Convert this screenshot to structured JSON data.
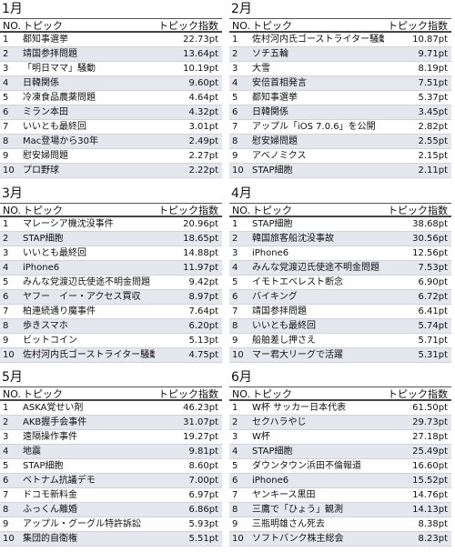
{
  "panels": [
    {
      "title": "1月",
      "header": [
        "NO.",
        "トピック",
        "トピック指数"
      ],
      "rows": [
        [
          "1",
          "都知事選挙",
          "22.73pt"
        ],
        [
          "2",
          "靖国参拝問題",
          "13.64pt"
        ],
        [
          "3",
          "「明日ママ」騒動",
          "10.19pt"
        ],
        [
          "4",
          "日韓関係",
          "9.60pt"
        ],
        [
          "5",
          "冷凍食品農薬問題",
          "4.64pt"
        ],
        [
          "6",
          "ミラン本田",
          "4.32pt"
        ],
        [
          "7",
          "いいとも最終回",
          "3.01pt"
        ],
        [
          "8",
          "Mac登場から30年",
          "2.49pt"
        ],
        [
          "9",
          "慰安婦問題",
          "2.27pt"
        ],
        [
          "10",
          "プロ野球",
          "2.22pt"
        ]
      ]
    },
    {
      "title": "2月",
      "header": [
        "NO.",
        "トピック",
        "トピック指数"
      ],
      "rows": [
        [
          "1",
          "佐村河内氏ゴーストライター騒動",
          "10.87pt"
        ],
        [
          "2",
          "ソチ五輪",
          "9.71pt"
        ],
        [
          "3",
          "大雪",
          "8.19pt"
        ],
        [
          "4",
          "安倍首相発言",
          "7.51pt"
        ],
        [
          "5",
          "都知事選挙",
          "5.37pt"
        ],
        [
          "6",
          "日韓関係",
          "3.45pt"
        ],
        [
          "7",
          "アップル「iOS 7.0.6」を公開",
          "2.82pt"
        ],
        [
          "8",
          "慰安婦問題",
          "2.55pt"
        ],
        [
          "9",
          "アベノミクス",
          "2.15pt"
        ],
        [
          "10",
          "STAP細胞",
          "2.11pt"
        ]
      ]
    },
    {
      "title": "3月",
      "header": [
        "NO.",
        "トピック",
        "トピック指数"
      ],
      "rows": [
        [
          "1",
          "マレーシア機沈没事件",
          "20.96pt"
        ],
        [
          "2",
          "STAP細胞",
          "18.65pt"
        ],
        [
          "3",
          "いいとも最終回",
          "14.88pt"
        ],
        [
          "4",
          "iPhone6",
          "11.97pt"
        ],
        [
          "5",
          "みんな党渡辺氏使途不明金問題",
          "9.42pt"
        ],
        [
          "6",
          "ヤフー　イー・アクセス買収",
          "8.97pt"
        ],
        [
          "7",
          "柏連続通り魔事件",
          "7.64pt"
        ],
        [
          "8",
          "歩きスマホ",
          "6.20pt"
        ],
        [
          "9",
          "ビットコイン",
          "5.13pt"
        ],
        [
          "10",
          "佐村河内氏ゴーストライター騒動",
          "4.75pt"
        ]
      ]
    },
    {
      "title": "4月",
      "header": [
        "NO.",
        "トピック",
        "トピック指数"
      ],
      "rows": [
        [
          "1",
          "STAP細胞",
          "38.68pt"
        ],
        [
          "2",
          "韓国旅客船沈没事故",
          "30.56pt"
        ],
        [
          "3",
          "iPhone6",
          "12.56pt"
        ],
        [
          "4",
          "みんな党渡辺氏使途不明金問題",
          "7.53pt"
        ],
        [
          "5",
          "イモトエベレスト断念",
          "6.90pt"
        ],
        [
          "6",
          "バイキング",
          "6.72pt"
        ],
        [
          "7",
          "靖国参拝問題",
          "6.41pt"
        ],
        [
          "8",
          "いいとも最終回",
          "5.74pt"
        ],
        [
          "9",
          "船舶差し押さえ",
          "5.71pt"
        ],
        [
          "10",
          "マー君大リーグで活躍",
          "5.31pt"
        ]
      ]
    },
    {
      "title": "5月",
      "header": [
        "NO.",
        "トピック",
        "トピック指数"
      ],
      "rows": [
        [
          "1",
          "ASKA覚せい剤",
          "46.23pt"
        ],
        [
          "2",
          "AKB握手会事件",
          "31.07pt"
        ],
        [
          "3",
          "遠隔操作事件",
          "19.27pt"
        ],
        [
          "4",
          "地震",
          "9.81pt"
        ],
        [
          "5",
          "STAP細胞",
          "8.60pt"
        ],
        [
          "6",
          "ベトナム抗議デモ",
          "7.00pt"
        ],
        [
          "7",
          "ドコモ新料金",
          "6.97pt"
        ],
        [
          "8",
          "ふっくん離婚",
          "6.86pt"
        ],
        [
          "9",
          "アップル・グーグル特許訴訟",
          "5.93pt"
        ],
        [
          "10",
          "集団的自衛権",
          "5.51pt"
        ]
      ]
    },
    {
      "title": "6月",
      "header": [
        "NO.",
        "トピック",
        "トピック指数"
      ],
      "rows": [
        [
          "1",
          "W杯 サッカー日本代表",
          "61.50pt"
        ],
        [
          "2",
          "セクハラやじ",
          "29.73pt"
        ],
        [
          "3",
          "W杯",
          "27.18pt"
        ],
        [
          "4",
          "STAP細胞",
          "25.49pt"
        ],
        [
          "5",
          "ダウンタウン浜田不倫報道",
          "16.60pt"
        ],
        [
          "6",
          "iPhone6",
          "15.52pt"
        ],
        [
          "7",
          "ヤンキース黒田",
          "14.76pt"
        ],
        [
          "8",
          "三鷹で「ひょう」観測",
          "14.13pt"
        ],
        [
          "9",
          "三瓶明雄さん死去",
          "8.38pt"
        ],
        [
          "10",
          "ソフトバンク株主総会",
          "8.23pt"
        ]
      ]
    }
  ]
}
